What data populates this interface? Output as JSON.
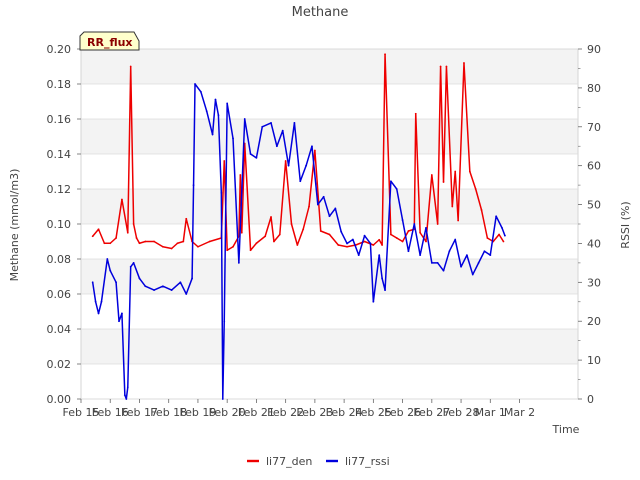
{
  "chart_data": {
    "type": "line",
    "title": "Methane",
    "badge": "RR_flux",
    "xlabel": "Time",
    "ylabel": "Methane (mmol/m3)",
    "y2label": "RSSI (%)",
    "xlim": [
      15,
      32
    ],
    "ylim": [
      0,
      0.2
    ],
    "y2lim": [
      0,
      90
    ],
    "x_ticks": [
      {
        "v": 15,
        "label": "Feb 15"
      },
      {
        "v": 16,
        "label": "Feb 16"
      },
      {
        "v": 17,
        "label": "Feb 17"
      },
      {
        "v": 18,
        "label": "Feb 18"
      },
      {
        "v": 19,
        "label": "Feb 19"
      },
      {
        "v": 20,
        "label": "Feb 20"
      },
      {
        "v": 21,
        "label": "Feb 21"
      },
      {
        "v": 22,
        "label": "Feb 22"
      },
      {
        "v": 23,
        "label": "Feb 23"
      },
      {
        "v": 24,
        "label": "Feb 24"
      },
      {
        "v": 25,
        "label": "Feb 25"
      },
      {
        "v": 26,
        "label": "Feb 26"
      },
      {
        "v": 27,
        "label": "Feb 27"
      },
      {
        "v": 28,
        "label": "Feb 28"
      },
      {
        "v": 29,
        "label": "Mar 1"
      },
      {
        "v": 30,
        "label": "Mar 2"
      }
    ],
    "y_ticks": [
      {
        "v": 0,
        "label": "0.00"
      },
      {
        "v": 0.02,
        "label": "0.02"
      },
      {
        "v": 0.04,
        "label": "0.04"
      },
      {
        "v": 0.06,
        "label": "0.06"
      },
      {
        "v": 0.08,
        "label": "0.08"
      },
      {
        "v": 0.1,
        "label": "0.10"
      },
      {
        "v": 0.12,
        "label": "0.12"
      },
      {
        "v": 0.14,
        "label": "0.14"
      },
      {
        "v": 0.16,
        "label": "0.16"
      },
      {
        "v": 0.18,
        "label": "0.18"
      },
      {
        "v": 0.2,
        "label": "0.20"
      }
    ],
    "y2_ticks": [
      {
        "v": 0,
        "label": "0"
      },
      {
        "v": 10,
        "label": "10"
      },
      {
        "v": 20,
        "label": "20"
      },
      {
        "v": 30,
        "label": "30"
      },
      {
        "v": 40,
        "label": "40"
      },
      {
        "v": 50,
        "label": "50"
      },
      {
        "v": 60,
        "label": "60"
      },
      {
        "v": 70,
        "label": "70"
      },
      {
        "v": 80,
        "label": "80"
      },
      {
        "v": 90,
        "label": "90"
      }
    ],
    "series": [
      {
        "name": "li77_den",
        "axis": "left",
        "color": "#ee0000",
        "x": [
          15.4,
          15.6,
          15.8,
          16.0,
          16.2,
          16.4,
          16.6,
          16.7,
          16.8,
          16.9,
          17.0,
          17.2,
          17.5,
          17.8,
          18.1,
          18.3,
          18.5,
          18.6,
          18.8,
          19.0,
          19.4,
          19.8,
          19.9,
          20.0,
          20.2,
          20.4,
          20.45,
          20.5,
          20.6,
          20.8,
          21.0,
          21.3,
          21.5,
          21.6,
          21.8,
          22.0,
          22.2,
          22.4,
          22.6,
          22.8,
          23.0,
          23.2,
          23.5,
          23.8,
          24.1,
          24.4,
          24.7,
          25.0,
          25.2,
          25.3,
          25.4,
          25.6,
          25.8,
          26.0,
          26.2,
          26.4,
          26.45,
          26.6,
          26.8,
          27.0,
          27.2,
          27.3,
          27.4,
          27.5,
          27.7,
          27.8,
          27.9,
          28.1,
          28.3,
          28.5,
          28.7,
          28.9,
          29.1,
          29.3,
          29.45
        ],
        "values": [
          0.093,
          0.097,
          0.089,
          0.089,
          0.092,
          0.114,
          0.095,
          0.19,
          0.1,
          0.092,
          0.089,
          0.09,
          0.09,
          0.087,
          0.086,
          0.089,
          0.09,
          0.103,
          0.09,
          0.087,
          0.09,
          0.092,
          0.136,
          0.085,
          0.087,
          0.093,
          0.128,
          0.095,
          0.146,
          0.085,
          0.089,
          0.093,
          0.104,
          0.09,
          0.094,
          0.136,
          0.1,
          0.088,
          0.097,
          0.11,
          0.142,
          0.096,
          0.094,
          0.088,
          0.087,
          0.088,
          0.09,
          0.088,
          0.091,
          0.088,
          0.197,
          0.094,
          0.092,
          0.09,
          0.096,
          0.097,
          0.163,
          0.095,
          0.09,
          0.128,
          0.1,
          0.19,
          0.124,
          0.19,
          0.11,
          0.13,
          0.102,
          0.192,
          0.13,
          0.12,
          0.108,
          0.092,
          0.09,
          0.094,
          0.09
        ]
      },
      {
        "name": "li77_rssi",
        "axis": "right",
        "color": "#0000dd",
        "x": [
          15.4,
          15.5,
          15.6,
          15.7,
          15.9,
          16.0,
          16.2,
          16.3,
          16.4,
          16.5,
          16.55,
          16.6,
          16.7,
          16.8,
          17.0,
          17.2,
          17.5,
          17.8,
          18.1,
          18.4,
          18.6,
          18.8,
          18.85,
          18.9,
          19.1,
          19.3,
          19.5,
          19.6,
          19.7,
          19.8,
          19.85,
          19.9,
          20.0,
          20.2,
          20.4,
          20.6,
          20.8,
          21.0,
          21.2,
          21.5,
          21.7,
          21.9,
          22.1,
          22.3,
          22.5,
          22.7,
          22.9,
          23.1,
          23.3,
          23.5,
          23.7,
          23.9,
          24.1,
          24.3,
          24.5,
          24.7,
          24.9,
          25.0,
          25.2,
          25.3,
          25.4,
          25.6,
          25.8,
          26.0,
          26.2,
          26.4,
          26.6,
          26.8,
          27.0,
          27.2,
          27.4,
          27.6,
          27.8,
          28.0,
          28.2,
          28.4,
          28.6,
          28.8,
          29.0,
          29.2,
          29.4,
          29.5
        ],
        "values": [
          30,
          25,
          22,
          25,
          36,
          33,
          30,
          20,
          22,
          1,
          0,
          3,
          34,
          35,
          31,
          29,
          28,
          29,
          28,
          30,
          27,
          31,
          55,
          81,
          79,
          74,
          68,
          77,
          73,
          53,
          0,
          20,
          76,
          67,
          35,
          72,
          63,
          62,
          70,
          71,
          65,
          69,
          60,
          71,
          56,
          60,
          65,
          50,
          52,
          47,
          49,
          43,
          40,
          41,
          37,
          42,
          40,
          25,
          37,
          31,
          28,
          56,
          54,
          46,
          38,
          45,
          37,
          44,
          35,
          35,
          33,
          38,
          41,
          34,
          37,
          32,
          35,
          38,
          37,
          47,
          44,
          42
        ]
      }
    ],
    "legend": {
      "placement": "bottom-center"
    }
  }
}
